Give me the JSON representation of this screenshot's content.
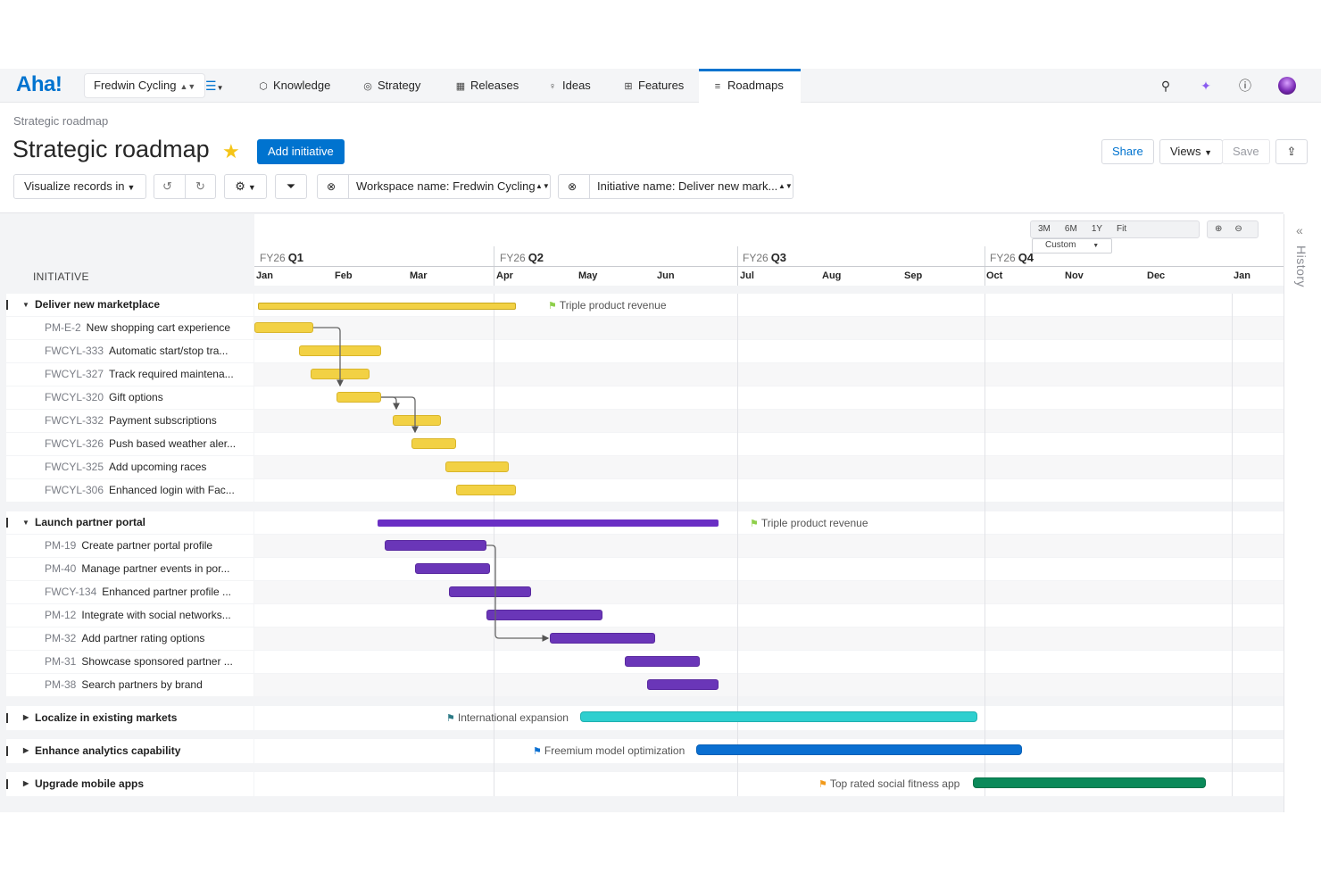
{
  "nav": {
    "logo": "Aha!",
    "workspace": "Fredwin Cycling",
    "items": [
      {
        "label": "Knowledge",
        "icon": "cube-icon"
      },
      {
        "label": "Strategy",
        "icon": "target-icon"
      },
      {
        "label": "Releases",
        "icon": "calendar-icon"
      },
      {
        "label": "Ideas",
        "icon": "lightbulb-icon"
      },
      {
        "label": "Features",
        "icon": "grid-icon"
      },
      {
        "label": "Roadmaps",
        "icon": "roadmap-icon",
        "active": true
      }
    ]
  },
  "page": {
    "breadcrumb": "Strategic roadmap",
    "title": "Strategic roadmap",
    "add_button": "Add initiative",
    "share": "Share",
    "views": "Views",
    "save": "Save"
  },
  "toolbar": {
    "visualize": "Visualize records in",
    "filter_workspace": "Workspace name: Fredwin Cycling",
    "filter_initiative": "Initiative name: Deliver new mark..."
  },
  "timeline": {
    "zoom": [
      "3M",
      "6M",
      "1Y",
      "Fit",
      "Custom"
    ],
    "column_header": "INITIATIVE",
    "quarters": [
      {
        "fy": "FY26",
        "q": "Q1"
      },
      {
        "fy": "FY26",
        "q": "Q2"
      },
      {
        "fy": "FY26",
        "q": "Q3"
      },
      {
        "fy": "FY26",
        "q": "Q4"
      }
    ],
    "months": [
      "Jan",
      "Feb",
      "Mar",
      "Apr",
      "May",
      "Jun",
      "Jul",
      "Aug",
      "Sep",
      "Oct",
      "Nov",
      "Dec",
      "Jan"
    ]
  },
  "initiatives": [
    {
      "name": "Deliver new marketplace",
      "goal": "Triple product revenue",
      "color": "#f2d144",
      "features": [
        {
          "key": "PM-E-2",
          "name": "New shopping cart experience"
        },
        {
          "key": "FWCYL-333",
          "name": "Automatic start/stop tra..."
        },
        {
          "key": "FWCYL-327",
          "name": "Track required maintena..."
        },
        {
          "key": "FWCYL-320",
          "name": "Gift options"
        },
        {
          "key": "FWCYL-332",
          "name": "Payment subscriptions"
        },
        {
          "key": "FWCYL-326",
          "name": "Push based weather aler..."
        },
        {
          "key": "FWCYL-325",
          "name": "Add upcoming races"
        },
        {
          "key": "FWCYL-306",
          "name": "Enhanced login with Fac..."
        }
      ]
    },
    {
      "name": "Launch partner portal",
      "goal": "Triple product revenue",
      "color": "#6a36b8",
      "features": [
        {
          "key": "PM-19",
          "name": "Create partner portal profile"
        },
        {
          "key": "PM-40",
          "name": "Manage partner events in por..."
        },
        {
          "key": "FWCY-134",
          "name": "Enhanced partner profile ..."
        },
        {
          "key": "PM-12",
          "name": "Integrate with social networks..."
        },
        {
          "key": "PM-32",
          "name": "Add partner rating options"
        },
        {
          "key": "PM-31",
          "name": "Showcase sponsored partner ..."
        },
        {
          "key": "PM-38",
          "name": "Search partners by brand"
        }
      ]
    },
    {
      "name": "Localize in existing markets",
      "goal": "International expansion",
      "color": "#2ecfcf",
      "flag_color": "#2c7a86"
    },
    {
      "name": "Enhance analytics capability",
      "goal": "Freemium model optimization",
      "color": "#0a6fd1",
      "flag_color": "#0a6fd1"
    },
    {
      "name": "Upgrade mobile apps",
      "goal": "Top rated social fitness app",
      "color": "#0b8a5a",
      "flag_color": "#f29a1a"
    }
  ],
  "history": "History"
}
